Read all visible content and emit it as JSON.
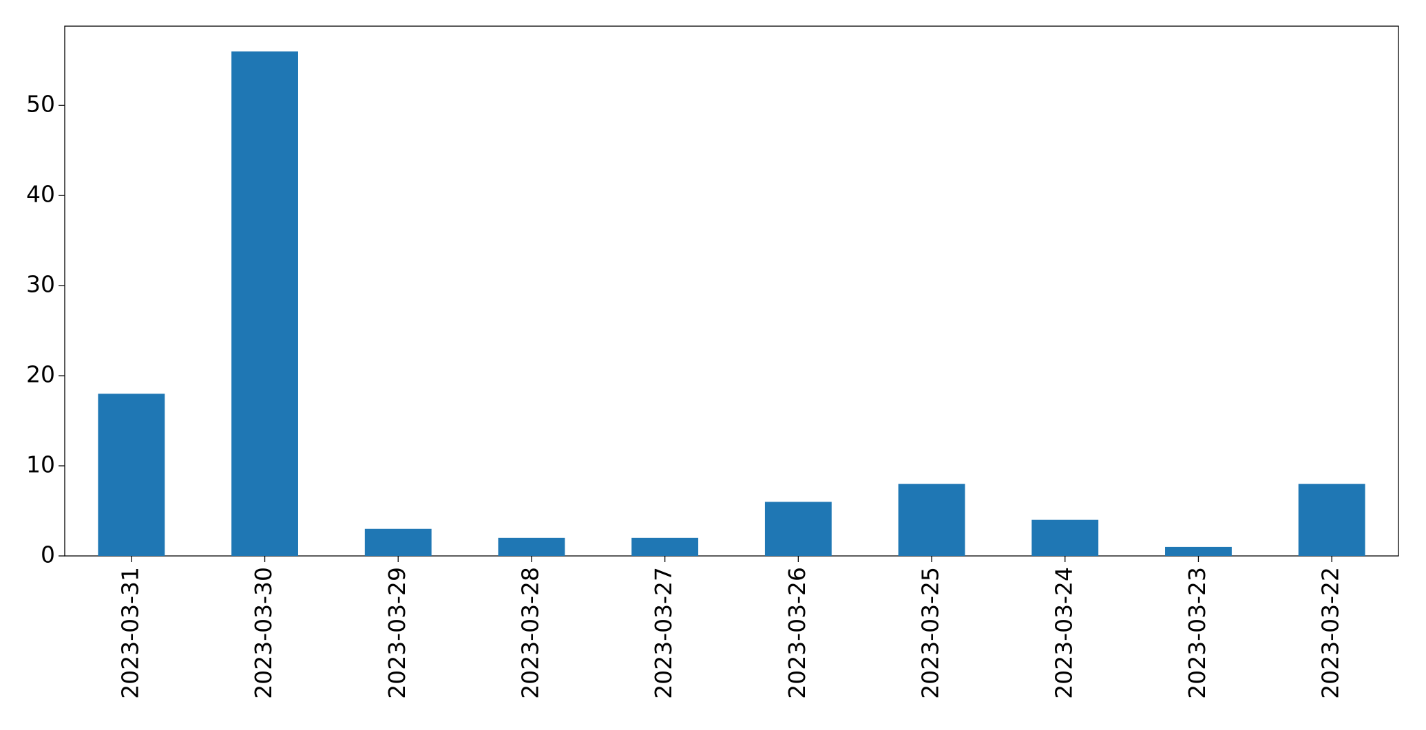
{
  "chart_data": {
    "type": "bar",
    "categories": [
      "2023-03-31",
      "2023-03-30",
      "2023-03-29",
      "2023-03-28",
      "2023-03-27",
      "2023-03-26",
      "2023-03-25",
      "2023-03-24",
      "2023-03-23",
      "2023-03-22"
    ],
    "values": [
      18,
      56,
      3,
      2,
      2,
      6,
      8,
      4,
      1,
      8
    ],
    "color": "#1f77b4",
    "ylim": [
      0,
      58.8
    ],
    "yticks": [
      0,
      10,
      20,
      30,
      40,
      50
    ],
    "grid": false
  }
}
